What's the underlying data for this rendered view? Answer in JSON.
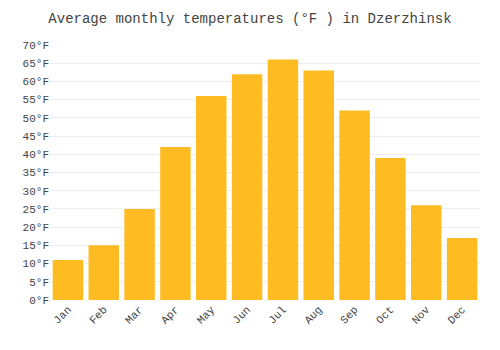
{
  "chart_data": {
    "type": "bar",
    "title": "Average monthly temperatures (°F ) in Dzerzhinsk",
    "categories": [
      "Jan",
      "Feb",
      "Mar",
      "Apr",
      "May",
      "Jun",
      "Jul",
      "Aug",
      "Sep",
      "Oct",
      "Nov",
      "Dec"
    ],
    "values": [
      11,
      15,
      25,
      42,
      56,
      62,
      66,
      63,
      52,
      39,
      26,
      17
    ],
    "color": "#FFBB22",
    "ylim": [
      0,
      70
    ],
    "yticks": [
      {
        "value": 0,
        "label": "0°F"
      },
      {
        "value": 5,
        "label": "5°F"
      },
      {
        "value": 10,
        "label": "10°F"
      },
      {
        "value": 15,
        "label": "15°F"
      },
      {
        "value": 20,
        "label": "20°F"
      },
      {
        "value": 25,
        "label": "25°F"
      },
      {
        "value": 30,
        "label": "30°F"
      },
      {
        "value": 35,
        "label": "35°F"
      },
      {
        "value": 40,
        "label": "40°F"
      },
      {
        "value": 45,
        "label": "45°F"
      },
      {
        "value": 50,
        "label": "50°F"
      },
      {
        "value": 55,
        "label": "55°F"
      },
      {
        "value": 60,
        "label": "60°F"
      },
      {
        "value": 65,
        "label": "65°F"
      },
      {
        "value": 70,
        "label": "70°F"
      }
    ],
    "grid": true
  }
}
